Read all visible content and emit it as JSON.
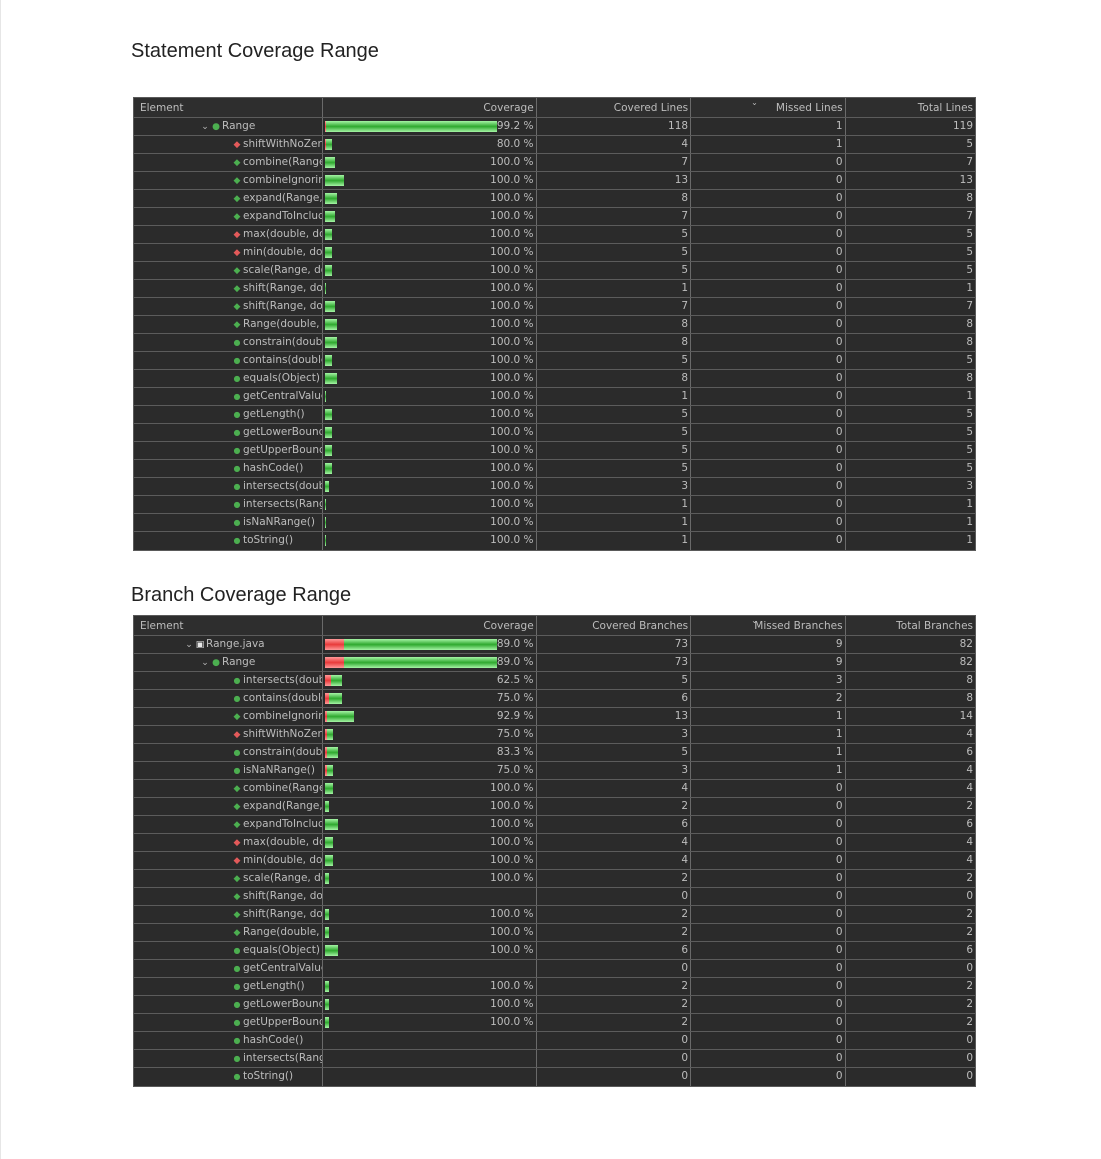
{
  "statement": {
    "title": "Statement Coverage Range",
    "headers": {
      "element": "Element",
      "coverage": "Coverage",
      "covered": "Covered Lines",
      "missed": "Missed Lines",
      "total": "Total Lines"
    },
    "rows": [
      {
        "level": 1,
        "twisty": "⌄",
        "icon": "class-icon",
        "name": "Range",
        "coverage": "99.2 %",
        "covered": "118",
        "missed": "1",
        "total": "119",
        "ratio": 0.992
      },
      {
        "level": 2,
        "icon": "static-method-private-icon",
        "name": "shiftWithNoZero",
        "coverage": "80.0 %",
        "covered": "4",
        "missed": "1",
        "total": "5",
        "ratio": 0.8
      },
      {
        "level": 2,
        "icon": "static-method-icon",
        "name": "combine(Range,",
        "coverage": "100.0 %",
        "covered": "7",
        "missed": "0",
        "total": "7",
        "ratio": 1
      },
      {
        "level": 2,
        "icon": "static-method-icon",
        "name": "combineIgnoring",
        "coverage": "100.0 %",
        "covered": "13",
        "missed": "0",
        "total": "13",
        "ratio": 1
      },
      {
        "level": 2,
        "icon": "static-method-icon",
        "name": "expand(Range, d",
        "coverage": "100.0 %",
        "covered": "8",
        "missed": "0",
        "total": "8",
        "ratio": 1
      },
      {
        "level": 2,
        "icon": "static-method-icon",
        "name": "expandToInclude",
        "coverage": "100.0 %",
        "covered": "7",
        "missed": "0",
        "total": "7",
        "ratio": 1
      },
      {
        "level": 2,
        "icon": "static-method-private-icon",
        "name": "max(double, dou",
        "coverage": "100.0 %",
        "covered": "5",
        "missed": "0",
        "total": "5",
        "ratio": 1
      },
      {
        "level": 2,
        "icon": "static-method-private-icon",
        "name": "min(double, dou",
        "coverage": "100.0 %",
        "covered": "5",
        "missed": "0",
        "total": "5",
        "ratio": 1
      },
      {
        "level": 2,
        "icon": "static-method-icon",
        "name": "scale(Range, dou",
        "coverage": "100.0 %",
        "covered": "5",
        "missed": "0",
        "total": "5",
        "ratio": 1
      },
      {
        "level": 2,
        "icon": "static-method-icon",
        "name": "shift(Range, dou",
        "coverage": "100.0 %",
        "covered": "1",
        "missed": "0",
        "total": "1",
        "ratio": 1
      },
      {
        "level": 2,
        "icon": "static-method-icon",
        "name": "shift(Range, dou",
        "coverage": "100.0 %",
        "covered": "7",
        "missed": "0",
        "total": "7",
        "ratio": 1
      },
      {
        "level": 2,
        "icon": "constructor-icon",
        "name": "Range(double, d",
        "coverage": "100.0 %",
        "covered": "8",
        "missed": "0",
        "total": "8",
        "ratio": 1
      },
      {
        "level": 2,
        "icon": "public-method-icon",
        "name": "constrain(double",
        "coverage": "100.0 %",
        "covered": "8",
        "missed": "0",
        "total": "8",
        "ratio": 1
      },
      {
        "level": 2,
        "icon": "public-method-icon",
        "name": "contains(double",
        "coverage": "100.0 %",
        "covered": "5",
        "missed": "0",
        "total": "5",
        "ratio": 1
      },
      {
        "level": 2,
        "icon": "public-method-icon",
        "name": "equals(Object)",
        "coverage": "100.0 %",
        "covered": "8",
        "missed": "0",
        "total": "8",
        "ratio": 1
      },
      {
        "level": 2,
        "icon": "public-method-icon",
        "name": "getCentralValue(",
        "coverage": "100.0 %",
        "covered": "1",
        "missed": "0",
        "total": "1",
        "ratio": 1
      },
      {
        "level": 2,
        "icon": "public-method-icon",
        "name": "getLength()",
        "coverage": "100.0 %",
        "covered": "5",
        "missed": "0",
        "total": "5",
        "ratio": 1
      },
      {
        "level": 2,
        "icon": "public-method-icon",
        "name": "getLowerBound(",
        "coverage": "100.0 %",
        "covered": "5",
        "missed": "0",
        "total": "5",
        "ratio": 1
      },
      {
        "level": 2,
        "icon": "public-method-icon",
        "name": "getUpperBound(",
        "coverage": "100.0 %",
        "covered": "5",
        "missed": "0",
        "total": "5",
        "ratio": 1
      },
      {
        "level": 2,
        "icon": "public-method-icon",
        "name": "hashCode()",
        "coverage": "100.0 %",
        "covered": "5",
        "missed": "0",
        "total": "5",
        "ratio": 1
      },
      {
        "level": 2,
        "icon": "public-method-icon",
        "name": "intersects(doubl",
        "coverage": "100.0 %",
        "covered": "3",
        "missed": "0",
        "total": "3",
        "ratio": 1
      },
      {
        "level": 2,
        "icon": "public-method-icon",
        "name": "intersects(Range",
        "coverage": "100.0 %",
        "covered": "1",
        "missed": "0",
        "total": "1",
        "ratio": 1
      },
      {
        "level": 2,
        "icon": "public-method-icon",
        "name": "isNaNRange()",
        "coverage": "100.0 %",
        "covered": "1",
        "missed": "0",
        "total": "1",
        "ratio": 1
      },
      {
        "level": 2,
        "icon": "public-method-icon",
        "name": "toString()",
        "coverage": "100.0 %",
        "covered": "1",
        "missed": "0",
        "total": "1",
        "ratio": 1
      }
    ]
  },
  "branch": {
    "title": "Branch Coverage Range",
    "headers": {
      "element": "Element",
      "coverage": "Coverage",
      "covered": "Covered Branches",
      "missed": "Missed Branches",
      "total": "Total Branches"
    },
    "rows": [
      {
        "level": 0,
        "twisty": "⌄",
        "icon": "java-file-icon",
        "name": "Range.java",
        "coverage": "89.0 %",
        "covered": "73",
        "missed": "9",
        "total": "82",
        "ratio": 0.89
      },
      {
        "level": 1,
        "twisty": "⌄",
        "icon": "class-icon",
        "name": "Range",
        "coverage": "89.0 %",
        "covered": "73",
        "missed": "9",
        "total": "82",
        "ratio": 0.89
      },
      {
        "level": 2,
        "icon": "public-method-icon",
        "name": "intersects(doubl",
        "coverage": "62.5 %",
        "covered": "5",
        "missed": "3",
        "total": "8",
        "ratio": 0.625
      },
      {
        "level": 2,
        "icon": "public-method-icon",
        "name": "contains(double",
        "coverage": "75.0 %",
        "covered": "6",
        "missed": "2",
        "total": "8",
        "ratio": 0.75
      },
      {
        "level": 2,
        "icon": "static-method-icon",
        "name": "combineIgnoring",
        "coverage": "92.9 %",
        "covered": "13",
        "missed": "1",
        "total": "14",
        "ratio": 0.929
      },
      {
        "level": 2,
        "icon": "static-method-private-icon",
        "name": "shiftWithNoZero",
        "coverage": "75.0 %",
        "covered": "3",
        "missed": "1",
        "total": "4",
        "ratio": 0.75
      },
      {
        "level": 2,
        "icon": "public-method-icon",
        "name": "constrain(double",
        "coverage": "83.3 %",
        "covered": "5",
        "missed": "1",
        "total": "6",
        "ratio": 0.833
      },
      {
        "level": 2,
        "icon": "public-method-icon",
        "name": "isNaNRange()",
        "coverage": "75.0 %",
        "covered": "3",
        "missed": "1",
        "total": "4",
        "ratio": 0.75
      },
      {
        "level": 2,
        "icon": "static-method-icon",
        "name": "combine(Range,",
        "coverage": "100.0 %",
        "covered": "4",
        "missed": "0",
        "total": "4",
        "ratio": 1
      },
      {
        "level": 2,
        "icon": "static-method-icon",
        "name": "expand(Range, d",
        "coverage": "100.0 %",
        "covered": "2",
        "missed": "0",
        "total": "2",
        "ratio": 1
      },
      {
        "level": 2,
        "icon": "static-method-icon",
        "name": "expandToInclude",
        "coverage": "100.0 %",
        "covered": "6",
        "missed": "0",
        "total": "6",
        "ratio": 1
      },
      {
        "level": 2,
        "icon": "static-method-private-icon",
        "name": "max(double, dou",
        "coverage": "100.0 %",
        "covered": "4",
        "missed": "0",
        "total": "4",
        "ratio": 1
      },
      {
        "level": 2,
        "icon": "static-method-private-icon",
        "name": "min(double, dou",
        "coverage": "100.0 %",
        "covered": "4",
        "missed": "0",
        "total": "4",
        "ratio": 1
      },
      {
        "level": 2,
        "icon": "static-method-icon",
        "name": "scale(Range, dou",
        "coverage": "100.0 %",
        "covered": "2",
        "missed": "0",
        "total": "2",
        "ratio": 1
      },
      {
        "level": 2,
        "icon": "static-method-icon",
        "name": "shift(Range, dou",
        "coverage": "",
        "covered": "0",
        "missed": "0",
        "total": "0",
        "ratio": 0
      },
      {
        "level": 2,
        "icon": "static-method-icon",
        "name": "shift(Range, dou",
        "coverage": "100.0 %",
        "covered": "2",
        "missed": "0",
        "total": "2",
        "ratio": 1
      },
      {
        "level": 2,
        "icon": "constructor-icon",
        "name": "Range(double, d",
        "coverage": "100.0 %",
        "covered": "2",
        "missed": "0",
        "total": "2",
        "ratio": 1
      },
      {
        "level": 2,
        "icon": "public-method-icon",
        "name": "equals(Object)",
        "coverage": "100.0 %",
        "covered": "6",
        "missed": "0",
        "total": "6",
        "ratio": 1
      },
      {
        "level": 2,
        "icon": "public-method-icon",
        "name": "getCentralValue(",
        "coverage": "",
        "covered": "0",
        "missed": "0",
        "total": "0",
        "ratio": 0
      },
      {
        "level": 2,
        "icon": "public-method-icon",
        "name": "getLength()",
        "coverage": "100.0 %",
        "covered": "2",
        "missed": "0",
        "total": "2",
        "ratio": 1
      },
      {
        "level": 2,
        "icon": "public-method-icon",
        "name": "getLowerBound(",
        "coverage": "100.0 %",
        "covered": "2",
        "missed": "0",
        "total": "2",
        "ratio": 1
      },
      {
        "level": 2,
        "icon": "public-method-icon",
        "name": "getUpperBound(",
        "coverage": "100.0 %",
        "covered": "2",
        "missed": "0",
        "total": "2",
        "ratio": 1
      },
      {
        "level": 2,
        "icon": "public-method-icon",
        "name": "hashCode()",
        "coverage": "",
        "covered": "0",
        "missed": "0",
        "total": "0",
        "ratio": 0
      },
      {
        "level": 2,
        "icon": "public-method-icon",
        "name": "intersects(Range",
        "coverage": "",
        "covered": "0",
        "missed": "0",
        "total": "0",
        "ratio": 0
      },
      {
        "level": 2,
        "icon": "public-method-icon",
        "name": "toString()",
        "coverage": "",
        "covered": "0",
        "missed": "0",
        "total": "0",
        "ratio": 0
      }
    ]
  },
  "icons": {
    "class-icon": "●",
    "public-method-icon": "●",
    "static-method-icon": "◆",
    "static-method-private-icon": "◆",
    "constructor-icon": "◆",
    "java-file-icon": "▣"
  },
  "colors": {
    "covered": "#2ea82e",
    "missed": "#e83a3a",
    "background": "#2b2b2b",
    "text": "#bdbdbd"
  }
}
